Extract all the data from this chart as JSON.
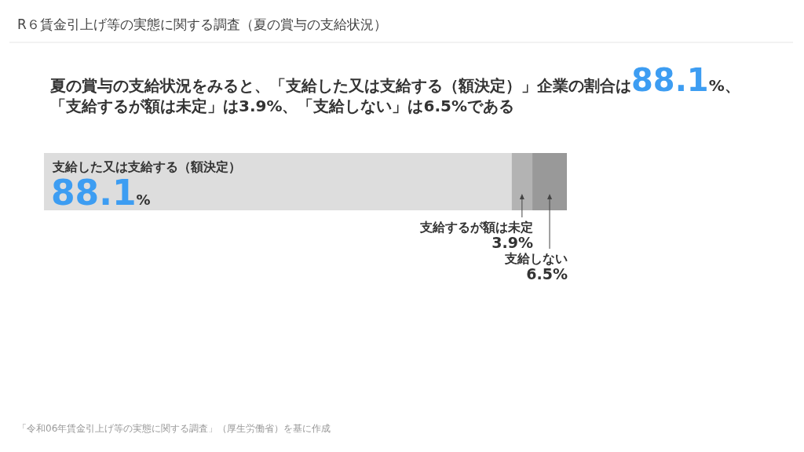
{
  "chart_data": {
    "type": "bar",
    "orientation": "horizontal",
    "stacked": true,
    "title": "R６賃金引上げ等の実態に関する調査（夏の賞与の支給状況）",
    "subtitle": "夏の賞与の支給状況をみると、「支給した又は支給する（額決定）」企業の割合は88.1%、「支給するが額は未定」は3.9%、「支給しない」は6.5%である",
    "categories": [
      null
    ],
    "series": [
      {
        "name": "支給した又は支給する（額決定）",
        "color": "#dddddd",
        "values": [
          88.1
        ],
        "value_labels": [
          "88.1%"
        ]
      },
      {
        "name": "支給するが額は未定",
        "color": "#b3b3b3",
        "values": [
          3.9
        ],
        "value_labels": [
          "3.9%"
        ]
      },
      {
        "name": "支給しない",
        "color": "#999999",
        "values": [
          6.5
        ],
        "value_labels": [
          "6.5%"
        ]
      }
    ],
    "annotations": [
      "「令和06年賃金引上げ等の実態に関する調査」（厚生労働省）を基に作成"
    ]
  }
}
